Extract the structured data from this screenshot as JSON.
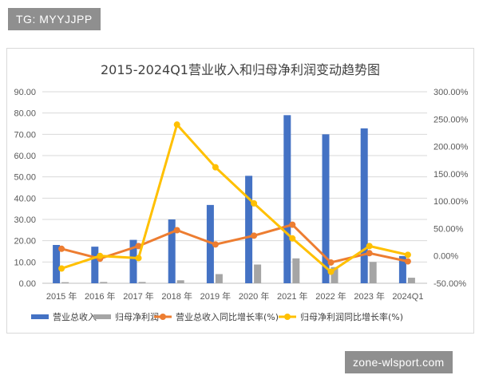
{
  "header_badge": "TG: MYYJJPP",
  "footer_badge": "zone-wlsport.com",
  "colors": {
    "revenue": "#4472c4",
    "net_profit": "#a5a5a5",
    "revenue_growth": "#ed7d31",
    "profit_growth": "#ffc000",
    "grid": "#d9d9d9"
  },
  "chart_data": {
    "type": "bar",
    "title": "2015-2024Q1营业收入和归母净利润变动趋势图",
    "categories": [
      "2015 年",
      "2016 年",
      "2017 年",
      "2018 年",
      "2019 年",
      "2020 年",
      "2021 年",
      "2022 年",
      "2023 年",
      "2024Q1"
    ],
    "y_left": {
      "ylim": [
        0,
        90
      ],
      "ticks": [
        "0.00",
        "10.00",
        "20.00",
        "30.00",
        "40.00",
        "50.00",
        "60.00",
        "70.00",
        "80.00",
        "90.00"
      ]
    },
    "y_right": {
      "ylim": [
        -50,
        300
      ],
      "ticks": [
        "-50.00%",
        "0.00%",
        "50.00%",
        "100.00%",
        "150.00%",
        "200.00%",
        "250.00%",
        "300.00%"
      ]
    },
    "series": [
      {
        "name": "营业总收入",
        "kind": "bar",
        "axis": "left",
        "color": "#4472c4",
        "values": [
          18.0,
          17.2,
          20.4,
          30.0,
          36.8,
          50.5,
          79.0,
          70.0,
          72.8,
          12.8
        ]
      },
      {
        "name": "归母净利润",
        "kind": "bar",
        "axis": "left",
        "color": "#a5a5a5",
        "values": [
          0.5,
          0.6,
          0.6,
          1.4,
          4.3,
          8.8,
          11.7,
          7.6,
          10.0,
          2.6
        ]
      },
      {
        "name": "营业总收入同比增长率(%)",
        "kind": "line",
        "axis": "right",
        "color": "#ed7d31",
        "values": [
          13,
          -5,
          18,
          47,
          21,
          37,
          57,
          -12,
          5,
          -10
        ]
      },
      {
        "name": "归母净利润同比增长率(%)",
        "kind": "line",
        "axis": "right",
        "color": "#ffc000",
        "values": [
          -23,
          0,
          -4,
          240,
          162,
          96,
          32,
          -29,
          18,
          2
        ]
      }
    ],
    "legend_position": "bottom",
    "grid": true
  }
}
